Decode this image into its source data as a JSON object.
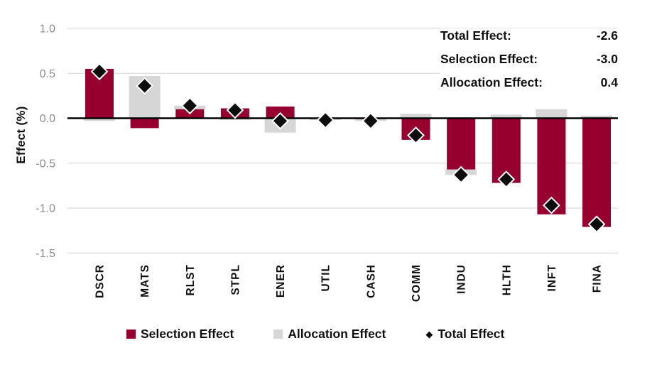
{
  "colors": {
    "selection": "#97002e",
    "allocation": "#d6d6d6",
    "total_marker": "#0d0d0d",
    "marker_outline": "#ffffff",
    "gridline": "#dcdcdc",
    "zero_line": "#000000",
    "tick_text": "#8c8c8c",
    "text": "#111111"
  },
  "y_axis": {
    "title": "Effect (%)",
    "ticks": [
      "1.0",
      "0.5",
      "0.0",
      "-0.5",
      "-1.0",
      "-1.5"
    ]
  },
  "stats": {
    "rows": [
      {
        "label": "Total Effect:",
        "value": "-2.6"
      },
      {
        "label": "Selection Effect:",
        "value": "-3.0"
      },
      {
        "label": "Allocation Effect:",
        "value": "0.4"
      }
    ]
  },
  "legend": [
    {
      "label": "Selection Effect",
      "marker": "square",
      "color": "#97002e"
    },
    {
      "label": "Allocation Effect",
      "marker": "square",
      "color": "#d6d6d6"
    },
    {
      "label": "Total Effect",
      "marker": "diamond",
      "glyph": "◆",
      "color": "#0d0d0d"
    }
  ],
  "chart_data": {
    "type": "bar",
    "subtype": "stacked-bars-with-diamond-markers",
    "title": "",
    "xlabel": "",
    "ylabel": "Effect (%)",
    "ylim": [
      -1.5,
      1.0
    ],
    "ytick_step": 0.5,
    "grid": true,
    "legend_position": "bottom",
    "categories": [
      "DSCR",
      "MATS",
      "RLST",
      "STPL",
      "ENER",
      "UTIL",
      "CASH",
      "COMM",
      "INDU",
      "HLTH",
      "INFT",
      "FINA"
    ],
    "series": [
      {
        "name": "Selection Effect",
        "type": "bar",
        "color": "#97002e",
        "values": [
          0.55,
          -0.11,
          0.1,
          0.11,
          0.13,
          0.0,
          -0.01,
          -0.24,
          -0.57,
          -0.72,
          -1.07,
          -1.21
        ]
      },
      {
        "name": "Allocation Effect",
        "type": "bar",
        "color": "#d6d6d6",
        "values": [
          -0.03,
          0.47,
          0.04,
          -0.02,
          -0.16,
          -0.02,
          -0.02,
          0.05,
          -0.06,
          0.04,
          0.1,
          0.03
        ]
      },
      {
        "name": "Total Effect",
        "type": "scatter",
        "marker": "diamond",
        "color": "#0d0d0d",
        "values": [
          0.52,
          0.36,
          0.14,
          0.09,
          -0.03,
          -0.02,
          -0.03,
          -0.19,
          -0.63,
          -0.68,
          -0.97,
          -1.18
        ]
      }
    ],
    "summary": {
      "total_effect": -2.6,
      "selection_effect": -3.0,
      "allocation_effect": 0.4
    }
  }
}
